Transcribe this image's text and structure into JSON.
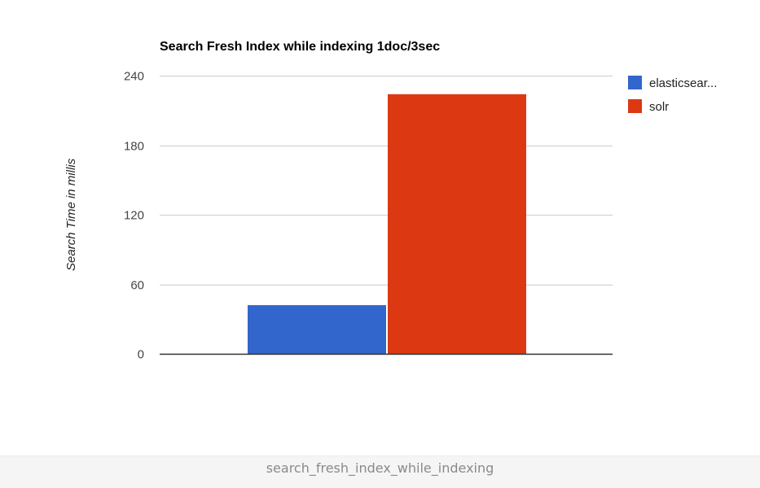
{
  "chart_data": {
    "type": "bar",
    "title": "Search Fresh Index while indexing 1doc/3sec",
    "xlabel": "",
    "ylabel": "Search Time in millis",
    "categories": [
      ""
    ],
    "series": [
      {
        "name": "elasticsear...",
        "color": "#3366cc",
        "values": [
          42
        ]
      },
      {
        "name": "solr",
        "color": "#dc3912",
        "values": [
          224
        ]
      }
    ],
    "ylim": [
      0,
      240
    ],
    "yticks": [
      "0",
      "60",
      "120",
      "180",
      "240"
    ],
    "ytick_values": [
      0,
      60,
      120,
      180,
      240
    ],
    "grid": true,
    "legend_position": "right"
  },
  "caption": "search_fresh_index_while_indexing"
}
